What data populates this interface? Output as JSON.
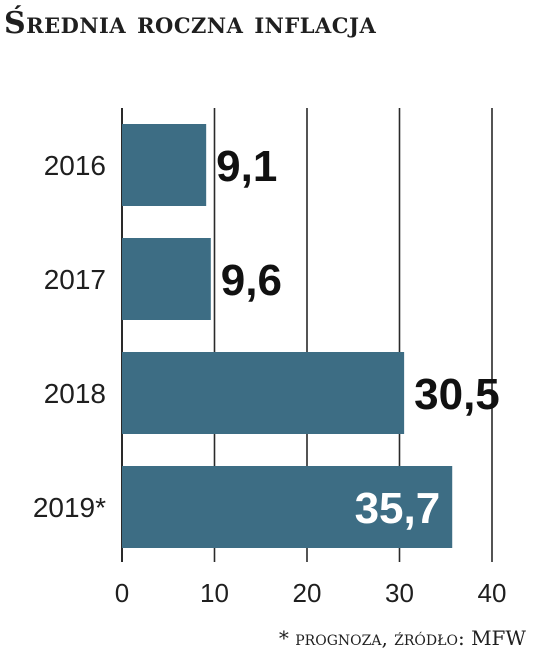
{
  "title": "Średnia roczna inflacja",
  "footnote": "* prognoza, źródło: MFW",
  "colors": {
    "bar": "#3d6d84",
    "label_dark": "#111111",
    "label_light": "#ffffff",
    "grid": "#2a2a2a"
  },
  "chart_data": {
    "type": "bar",
    "orientation": "horizontal",
    "categories": [
      "2016",
      "2017",
      "2018",
      "2019*"
    ],
    "values": [
      9.1,
      9.6,
      30.5,
      35.7
    ],
    "value_labels": [
      "9,1",
      "9,6",
      "30,5",
      "35,7"
    ],
    "xlim": [
      0,
      40
    ],
    "xticks": [
      "0",
      "10",
      "20",
      "30",
      "40"
    ],
    "grid": true
  }
}
